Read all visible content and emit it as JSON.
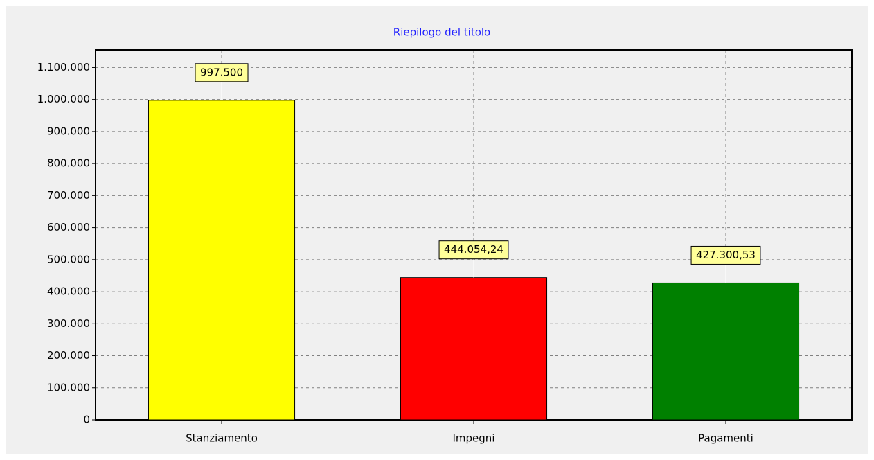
{
  "chart_data": {
    "type": "bar",
    "title": "Riepilogo del titolo",
    "categories": [
      "Stanziamento",
      "Impegni",
      "Pagamenti"
    ],
    "values": [
      997500,
      444054.24,
      427300.53
    ],
    "value_labels": [
      "997.500",
      "444.054,24",
      "427.300,53"
    ],
    "colors": [
      "#ffff00",
      "#ff0000",
      "#008000"
    ],
    "ylim": [
      0,
      1155000
    ],
    "yticks": [
      0,
      {
        "value": 100000,
        "label": "100.000"
      },
      {
        "value": 200000,
        "label": "200.000"
      },
      {
        "value": 300000,
        "label": "300.000"
      },
      {
        "value": 400000,
        "label": "400.000"
      },
      {
        "value": 500000,
        "label": "500.000"
      },
      {
        "value": 600000,
        "label": "600.000"
      },
      {
        "value": 700000,
        "label": "700.000"
      },
      {
        "value": 800000,
        "label": "800.000"
      },
      {
        "value": 900000,
        "label": "900.000"
      },
      {
        "value": 1000000,
        "label": "1.000.000"
      },
      {
        "value": 1100000,
        "label": "1.100.000"
      }
    ],
    "grid": true
  }
}
